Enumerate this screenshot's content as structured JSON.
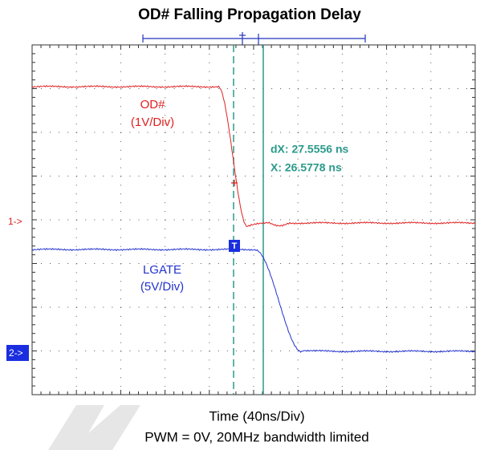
{
  "title": "OD# Falling Propagation Delay",
  "channels": [
    {
      "label": "OD#",
      "scale": "(1V/Div)",
      "marker": "1->"
    },
    {
      "label": "LGATE",
      "scale": "(5V/Div)",
      "marker": "2->"
    }
  ],
  "trigger": "T",
  "cursor": {
    "dx": "dX: 27.5556 ns",
    "x": "X: 26.5778 ns"
  },
  "footer": {
    "time": "Time (40ns/Div)",
    "note": "PWM = 0V, 20MHz bandwidth limited"
  }
}
